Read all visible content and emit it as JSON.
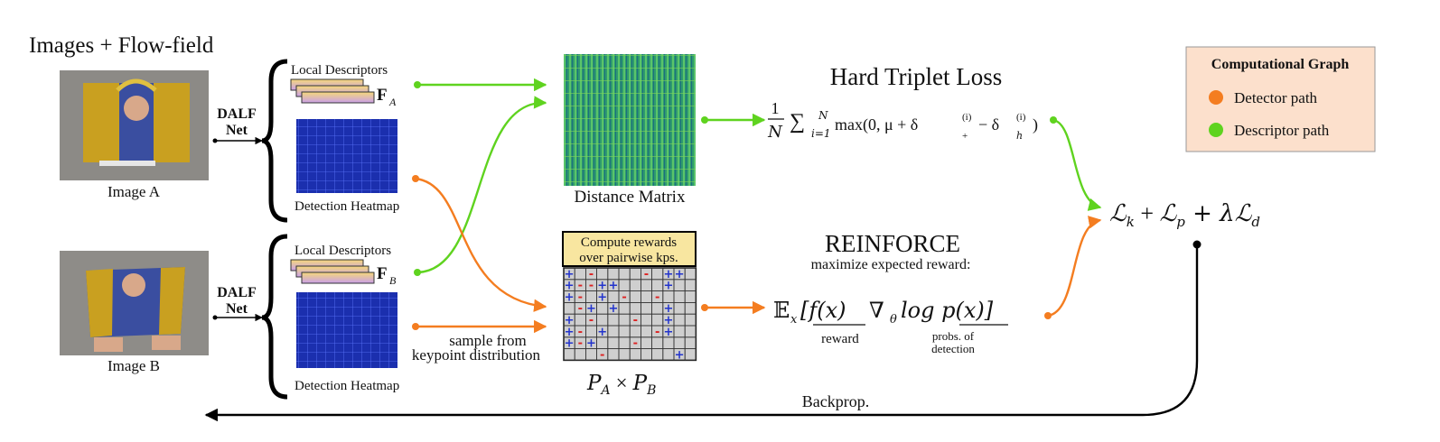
{
  "header": {
    "title": "Images + Flow-field"
  },
  "images": {
    "a": {
      "label": "Image A"
    },
    "b": {
      "label": "Image B"
    }
  },
  "network": {
    "line1": "DALF",
    "line2": "Net"
  },
  "branch_a": {
    "descriptors_label": "Local Descriptors",
    "descriptor_symbol": "F",
    "descriptor_sub": "A",
    "heatmap_label": "Detection Heatmap"
  },
  "branch_b": {
    "descriptors_label": "Local Descriptors",
    "descriptor_symbol": "F",
    "descriptor_sub": "B",
    "heatmap_label": "Detection Heatmap"
  },
  "distance_matrix": {
    "label": "Distance Matrix"
  },
  "triplet": {
    "title": "Hard Triplet Loss",
    "frac_num": "1",
    "frac_den": "N",
    "sum": "∑",
    "sum_upper": "N",
    "sum_lower": "i=1",
    "body": "max(0, μ + δ",
    "d_plus_sup": "(i)",
    "d_plus_sub": "+",
    "minus": " − δ",
    "d_h_sup": "(i)",
    "d_h_sub": "h",
    "close": ")"
  },
  "rewards": {
    "box_line1": "Compute rewards",
    "box_line2": "over pairwise kps.",
    "label": "P",
    "sub_a": "A",
    "times": "×",
    "sub_b": "B",
    "sample_line1": "sample from",
    "sample_line2": "keypoint distribution",
    "grid_plus": "+",
    "grid_minus": "-"
  },
  "reinforce": {
    "title": "REINFORCE",
    "subtitle": "maximize expected reward:",
    "expr_e": "𝔼",
    "expr_x": "x",
    "expr_f": "[f(x)",
    "expr_nabla": "∇",
    "expr_theta": "θ",
    "expr_log": " log p(x)]",
    "reward_label": "reward",
    "probs_line1": "probs. of",
    "probs_line2": "detection"
  },
  "total_loss": {
    "l1": "ℒ",
    "s1": "k",
    "plus1": " + ",
    "l2": "ℒ",
    "s2": "p",
    "plus2": " + λ",
    "l3": "ℒ",
    "s3": "d"
  },
  "backprop": {
    "label": "Backprop."
  },
  "legend": {
    "title": "Computational Graph",
    "items": [
      {
        "label": "Detector path",
        "color": "#f47d20"
      },
      {
        "label": "Descriptor path",
        "color": "#5fd31f"
      }
    ],
    "background": "#fce0cc"
  },
  "colors": {
    "detector": "#f47d20",
    "descriptor": "#5fd31f",
    "heatmap": "#1b2fae",
    "plus": "#2233cc",
    "minus": "#dd2222"
  }
}
